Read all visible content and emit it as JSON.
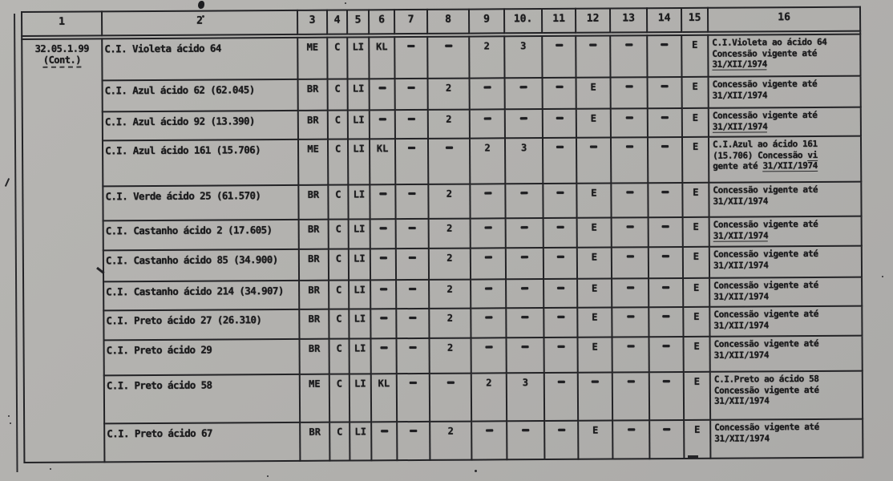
{
  "document": {
    "paper_color": "#b2b1ae",
    "ink_color": "#1b1b1d",
    "headers": [
      "1",
      "2",
      "3",
      "4",
      "5",
      "6",
      "7",
      "8",
      "9",
      "10.",
      "11",
      "12",
      "13",
      "14",
      "15",
      "16"
    ],
    "code_cell": {
      "line1": "32.05.1.99",
      "line2": "(Cont.)"
    },
    "rows": [
      {
        "name": "C.I. Violeta ácido 64",
        "values": [
          "ME",
          "C",
          "LI",
          "KL",
          "-",
          "-",
          "2",
          "3",
          "-",
          "-",
          "-",
          "-",
          "E"
        ],
        "obs": [
          "C.I.Violeta ao ácido 64",
          "Concessão vigente até",
          "|31/XII/1974|"
        ]
      },
      {
        "name": "C.I. Azul ácido 62 (62.045)",
        "values": [
          "BR",
          "C",
          "LI",
          "-",
          "-",
          "2",
          "-",
          "-",
          "-",
          "E",
          "-",
          "-",
          "E"
        ],
        "obs": [
          "Concessão vigente até",
          "31/XII/1974"
        ]
      },
      {
        "name": "C.I. Azul ácido 92 (13.390)",
        "values": [
          "BR",
          "C",
          "LI",
          "-",
          "-",
          "2",
          "-",
          "-",
          "-",
          "E",
          "-",
          "-",
          "E"
        ],
        "obs": [
          "Concessão vigente até",
          "|31/XII/1974|"
        ]
      },
      {
        "name": "C.I. Azul ácido 161 (15.706)",
        "values": [
          "ME",
          "C",
          "LI",
          "KL",
          "-",
          "-",
          "2",
          "3",
          "-",
          "-",
          "-",
          "-",
          "E"
        ],
        "obs": [
          "C.I.Azul ao ácido 161",
          "(15.706)  Concessão |vi|",
          "gente até |31/XII/1974|"
        ]
      },
      {
        "name": "C.I. Verde ácido 25 (61.570)",
        "values": [
          "BR",
          "C",
          "LI",
          "-",
          "-",
          "2",
          "-",
          "-",
          "-",
          "E",
          "-",
          "-",
          "E"
        ],
        "obs": [
          "Concessão vigente até",
          "31/XII/1974"
        ]
      },
      {
        "name": "C.I. Castanho ácido 2 (17.605)",
        "values": [
          "BR",
          "C",
          "LI",
          "-",
          "-",
          "2",
          "-",
          "-",
          "-",
          "E",
          "-",
          "-",
          "E"
        ],
        "obs": [
          "Concessão vigente até",
          "|31/XII/1974|"
        ]
      },
      {
        "name": "C.I. Castanho ácido 85 (34.900)",
        "values": [
          "BR",
          "C",
          "LI",
          "-",
          "-",
          "2",
          "-",
          "-",
          "-",
          "E",
          "-",
          "-",
          "E"
        ],
        "obs": [
          "Concessão vigente até",
          "31/XII/1974"
        ]
      },
      {
        "name": "C.I. Castanho ácido 214 (34.907)",
        "values": [
          "BR",
          "C",
          "LI",
          "-",
          "-",
          "2",
          "-",
          "-",
          "-",
          "E",
          "-",
          "-",
          "E"
        ],
        "obs": [
          "Concessão vigente até",
          "31/XII/1974"
        ]
      },
      {
        "name": "C.I. Preto ácido 27 (26.310)",
        "values": [
          "BR",
          "C",
          "LI",
          "-",
          "-",
          "2",
          "-",
          "-",
          "-",
          "E",
          "-",
          "-",
          "E"
        ],
        "obs": [
          "Concessão vigente até",
          "31/XII/1974"
        ]
      },
      {
        "name": "C.I. Preto ácido 29",
        "values": [
          "BR",
          "C",
          "LI",
          "-",
          "-",
          "2",
          "-",
          "-",
          "-",
          "E",
          "-",
          "-",
          "E"
        ],
        "obs": [
          "Concessão vigente até",
          "31/XII/1974"
        ]
      },
      {
        "name": "C.I. Preto ácido 58",
        "values": [
          "ME",
          "C",
          "LI",
          "KL",
          "-",
          "-",
          "2",
          "3",
          "-",
          "-",
          "-",
          "-",
          "E"
        ],
        "obs": [
          "C.I.Preto ao ácido 58",
          "Concessão vigente até",
          "31/XII/1974"
        ]
      },
      {
        "name": "C.I. Preto ácido 67",
        "values": [
          "BR",
          "C",
          "LI",
          "-",
          "-",
          "2",
          "-",
          "-",
          "-",
          "E",
          "-",
          "-",
          "E"
        ],
        "obs": [
          "Concessão vigente até",
          "31/XII/1974"
        ]
      }
    ]
  }
}
